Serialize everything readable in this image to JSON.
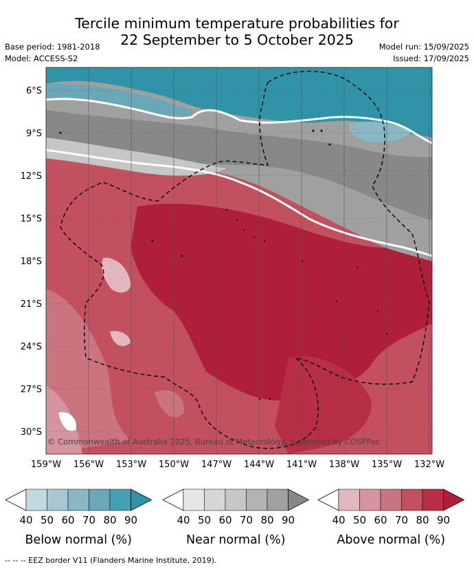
{
  "header": {
    "title_line1": "Tercile minimum temperature probabilities for",
    "title_line2": "22 September to 5 October 2025",
    "base_period": "Base period: 1981-2018",
    "model": "Model: ACCESS-S2",
    "model_run": "Model run: 15/09/2025",
    "issued": "Issued: 17/09/2025"
  },
  "map": {
    "copyright": "© Commonwealth of Australia 2025, Bureau of Meteorology, supported by COSPPac",
    "lon_labels": [
      "159°W",
      "156°W",
      "153°W",
      "150°W",
      "147°W",
      "144°W",
      "141°W",
      "138°W",
      "135°W",
      "132°W"
    ],
    "lat_labels": [
      "6°S",
      "9°S",
      "12°S",
      "15°S",
      "18°S",
      "21°S",
      "24°S",
      "27°S",
      "30°S"
    ]
  },
  "legends": [
    {
      "name": "below",
      "label": "Below normal (%)",
      "ticks": [
        "40",
        "50",
        "60",
        "70",
        "80",
        "90"
      ],
      "colors": [
        "#c2d9df",
        "#a6c8d0",
        "#8ab7c2",
        "#6aa8b7",
        "#45a1b2",
        "#3093a8"
      ]
    },
    {
      "name": "near",
      "label": "Near normal (%)",
      "ticks": [
        "40",
        "50",
        "60",
        "70",
        "80",
        "90"
      ],
      "colors": [
        "#e6e6e6",
        "#d6d6d6",
        "#c6c6c6",
        "#b3b3b3",
        "#a0a0a0",
        "#888888"
      ]
    },
    {
      "name": "above",
      "label": "Above normal (%)",
      "ticks": [
        "40",
        "50",
        "60",
        "70",
        "80",
        "90"
      ],
      "colors": [
        "#e2b7bf",
        "#d5949e",
        "#ca7480",
        "#c2505f",
        "#b72f44",
        "#b01f3a"
      ]
    }
  ],
  "footnote": "--  --  -- EEZ border V11 (Flanders Marine Institute, 2019)."
}
